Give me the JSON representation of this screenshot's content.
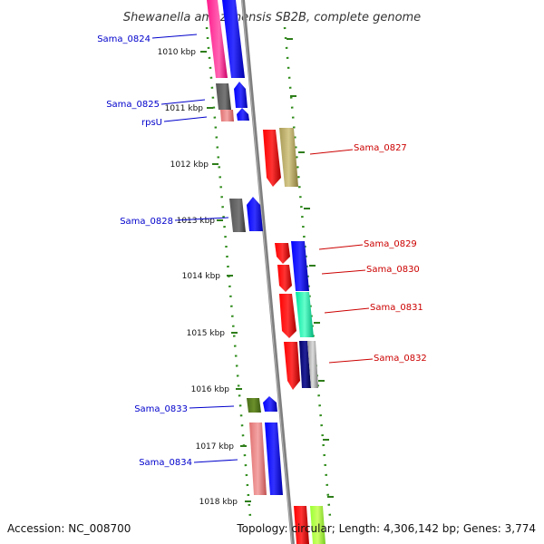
{
  "title": "Shewanella amazonensis SB2B, complete genome",
  "footer": {
    "accession": "Accession: NC_008700",
    "topology": "Topology: circular; Length: 4,306,142 bp; Genes: 3,774"
  },
  "ticks": [
    "1010 kbp",
    "1011 kbp",
    "1012 kbp",
    "1013 kbp",
    "1014 kbp",
    "1015 kbp",
    "1016 kbp",
    "1017 kbp",
    "1018 kbp"
  ],
  "genes_left": [
    "Sama_0824",
    "Sama_0825",
    "rpsU",
    "Sama_0828",
    "Sama_0833",
    "Sama_0834"
  ],
  "genes_right": [
    "Sama_0827",
    "Sama_0829",
    "Sama_0830",
    "Sama_0831",
    "Sama_0832"
  ],
  "colors": {
    "left_label": "#0000cc",
    "right_label": "#cc0000",
    "tick": "#2e7d1a",
    "backbone": "#808080"
  }
}
